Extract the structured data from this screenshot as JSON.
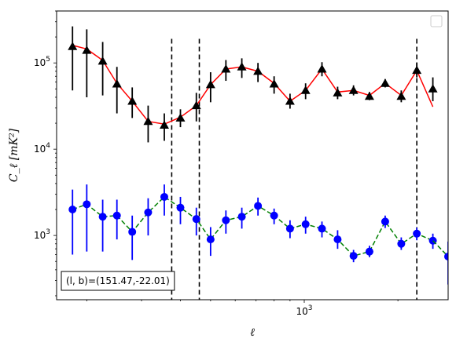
{
  "chart_data": {
    "type": "scatter",
    "title": "",
    "xlabel": "ℓ",
    "ylabel": "C_ℓ  [mK²]",
    "xscale": "log",
    "yscale": "log",
    "xlim": [
      160,
      2900
    ],
    "ylim": [
      180,
      400000
    ],
    "x_tick_labels": [
      {
        "value": 1000,
        "base": "10",
        "exp": "3"
      }
    ],
    "y_tick_labels": [
      {
        "value": 1000,
        "base": "10",
        "exp": "3"
      },
      {
        "value": 10000,
        "base": "10",
        "exp": "4"
      },
      {
        "value": 100000,
        "base": "10",
        "exp": "5"
      }
    ],
    "annotation": "(l, b)=(151.47,-22.01)",
    "annotation_position": "bottom-left",
    "legend_placement": "top-right",
    "legend_entries": [],
    "grid": false,
    "vlines": [
      {
        "x": 375,
        "style": "dashed",
        "color": "#000000"
      },
      {
        "x": 460,
        "style": "dashed",
        "color": "#000000"
      },
      {
        "x": 2300,
        "style": "dashed",
        "color": "#000000"
      }
    ],
    "series": [
      {
        "marker": "triangle",
        "color": "#000000",
        "line_color": "#ff0000",
        "line_style": "solid",
        "x": [
          180,
          200,
          225,
          250,
          280,
          315,
          355,
          400,
          450,
          500,
          560,
          630,
          710,
          800,
          900,
          1010,
          1140,
          1280,
          1440,
          1620,
          1820,
          2050,
          2300,
          2590
        ],
        "y": [
          155000,
          140000,
          105000,
          57000,
          36000,
          21000,
          19000,
          23000,
          32000,
          56000,
          85000,
          90000,
          80000,
          57000,
          36000,
          48000,
          85000,
          45000,
          48000,
          41000,
          58000,
          41000,
          82000,
          50000
        ],
        "y_low": [
          48000,
          40000,
          42000,
          26000,
          23000,
          12000,
          12500,
          18000,
          21000,
          35000,
          62000,
          67000,
          60000,
          44000,
          29500,
          38000,
          70000,
          38000,
          42000,
          37000,
          52000,
          35000,
          68000,
          36000
        ],
        "y_high": [
          265000,
          245000,
          175000,
          90000,
          52000,
          32000,
          26000,
          29000,
          45000,
          78000,
          108000,
          113000,
          100000,
          70000,
          44000,
          58000,
          102000,
          53000,
          55000,
          46000,
          65000,
          48000,
          100000,
          68000
        ],
        "fit_line": [
          160000,
          145000,
          107000,
          58000,
          36000,
          21000,
          19500,
          23500,
          32000,
          56000,
          85000,
          90000,
          80000,
          58000,
          36000,
          48000,
          85000,
          46000,
          48000,
          42000,
          58000,
          42000,
          82000,
          31000
        ]
      },
      {
        "marker": "circle",
        "color": "#0000ff",
        "line_color": "#008000",
        "line_style": "dashed",
        "x": [
          180,
          200,
          225,
          250,
          280,
          315,
          355,
          400,
          450,
          500,
          560,
          630,
          710,
          800,
          900,
          1010,
          1140,
          1280,
          1440,
          1620,
          1820,
          2050,
          2300,
          2590
        ],
        "y": [
          2000,
          2300,
          1650,
          1700,
          1100,
          1850,
          2800,
          2100,
          1550,
          900,
          1500,
          1650,
          2200,
          1700,
          1200,
          1350,
          1200,
          900,
          580,
          650,
          1450,
          800,
          1050,
          870
        ],
        "y_low": [
          600,
          650,
          650,
          900,
          520,
          1000,
          1700,
          1350,
          1000,
          580,
          1050,
          1200,
          1700,
          1350,
          930,
          1050,
          950,
          700,
          490,
          560,
          1220,
          680,
          880,
          700
        ],
        "y_high": [
          3400,
          3900,
          2600,
          2600,
          1700,
          2700,
          3900,
          2800,
          2100,
          1250,
          1950,
          2100,
          2750,
          2050,
          1500,
          1650,
          1450,
          1150,
          680,
          760,
          1700,
          950,
          1230,
          1050
        ],
        "last_point": {
          "x": 2900,
          "y": 570,
          "y_low": 270,
          "y_high": 850
        }
      }
    ]
  }
}
